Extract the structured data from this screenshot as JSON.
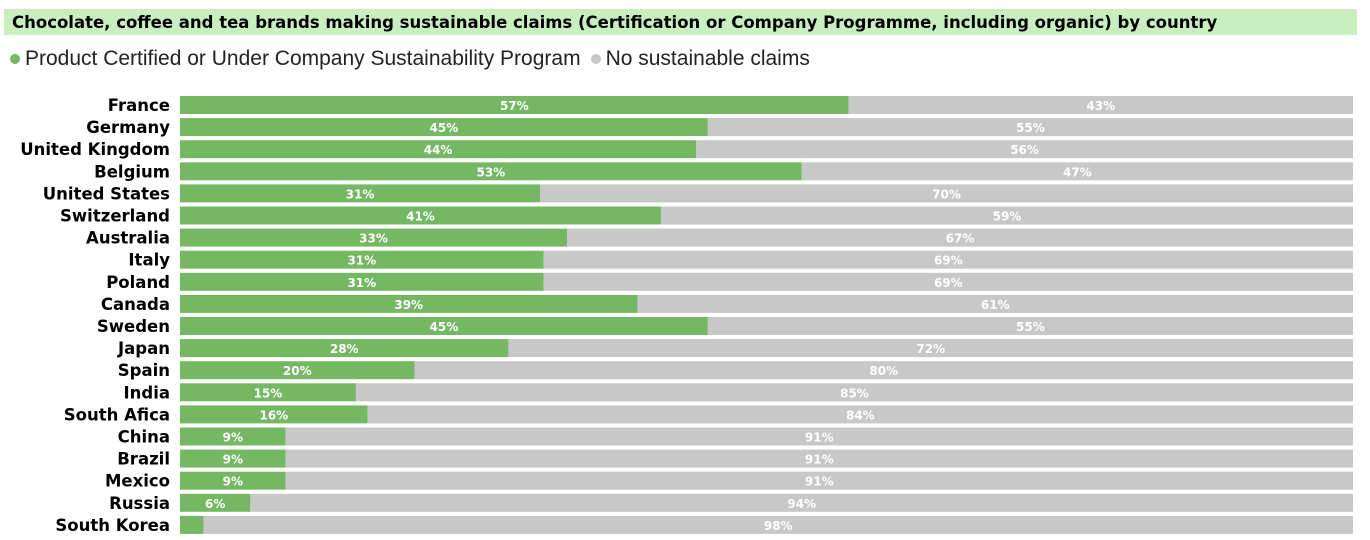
{
  "chart_data": {
    "type": "bar",
    "orientation": "horizontal",
    "stacked": true,
    "title": "Chocolate, coffee and tea brands making sustainable claims (Certification or Company Programme, including organic) by country",
    "legend_position": "top-left",
    "categories": [
      "France",
      "Germany",
      "United Kingdom",
      "Belgium",
      "United States",
      "Switzerland",
      "Australia",
      "Italy",
      "Poland",
      "Canada",
      "Sweden",
      "Japan",
      "Spain",
      "India",
      "South Afica",
      "China",
      "Brazil",
      "Mexico",
      "Russia",
      "South Korea"
    ],
    "series": [
      {
        "name": "Product Certified or Under Company Sustainability Program",
        "color": "#74b863",
        "values": [
          57,
          45,
          44,
          53,
          31,
          41,
          33,
          31,
          31,
          39,
          45,
          28,
          20,
          15,
          16,
          9,
          9,
          9,
          6,
          2
        ],
        "labels": [
          "57%",
          "45%",
          "44%",
          "53%",
          "31%",
          "41%",
          "33%",
          "31%",
          "31%",
          "39%",
          "45%",
          "28%",
          "20%",
          "15%",
          "16%",
          "9%",
          "9%",
          "9%",
          "6%",
          ""
        ]
      },
      {
        "name": "No sustainable claims",
        "color": "#c8c8c8",
        "values": [
          43,
          55,
          56,
          47,
          70,
          59,
          67,
          69,
          69,
          61,
          55,
          72,
          80,
          85,
          84,
          91,
          91,
          91,
          94,
          98
        ],
        "labels": [
          "43%",
          "55%",
          "56%",
          "47%",
          "70%",
          "59%",
          "67%",
          "69%",
          "69%",
          "61%",
          "55%",
          "72%",
          "80%",
          "85%",
          "84%",
          "91%",
          "91%",
          "91%",
          "94%",
          "98%"
        ]
      }
    ],
    "xlim": [
      0,
      100
    ],
    "grid": false
  },
  "colors": {
    "title_background": "#c9efc0"
  }
}
